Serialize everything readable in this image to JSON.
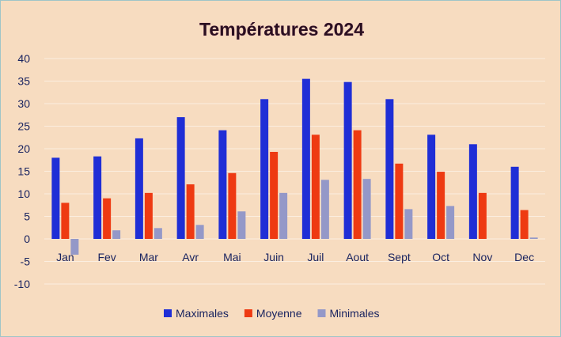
{
  "chart_data": {
    "type": "bar",
    "title": "Températures 2024",
    "xlabel": "",
    "ylabel": "",
    "categories": [
      "Jan",
      "Fev",
      "Mar",
      "Avr",
      "Mai",
      "Juin",
      "Juil",
      "Aout",
      "Sept",
      "Oct",
      "Nov",
      "Dec"
    ],
    "series": [
      {
        "name": "Maximales",
        "color": "#1f2ed6",
        "values": [
          18,
          18.3,
          22.3,
          27,
          24.1,
          31,
          35.5,
          34.8,
          31,
          23.1,
          21,
          16
        ]
      },
      {
        "name": "Moyenne",
        "color": "#ee3a12",
        "values": [
          8,
          9,
          10.2,
          12.1,
          14.6,
          19.3,
          23.1,
          24.1,
          16.7,
          14.9,
          10.2,
          6.4
        ]
      },
      {
        "name": "Minimales",
        "color": "#9498c8",
        "values": [
          -3.5,
          1.9,
          2.4,
          3.1,
          6.1,
          10.2,
          13.1,
          13.3,
          6.6,
          7.3,
          0,
          0.3
        ]
      }
    ],
    "ylim": [
      -10,
      40
    ],
    "yticks": [
      "-10",
      "-5",
      "0",
      "5",
      "10",
      "15",
      "20",
      "25",
      "30",
      "35",
      "40"
    ],
    "grid": true,
    "legend_position": "bottom"
  }
}
